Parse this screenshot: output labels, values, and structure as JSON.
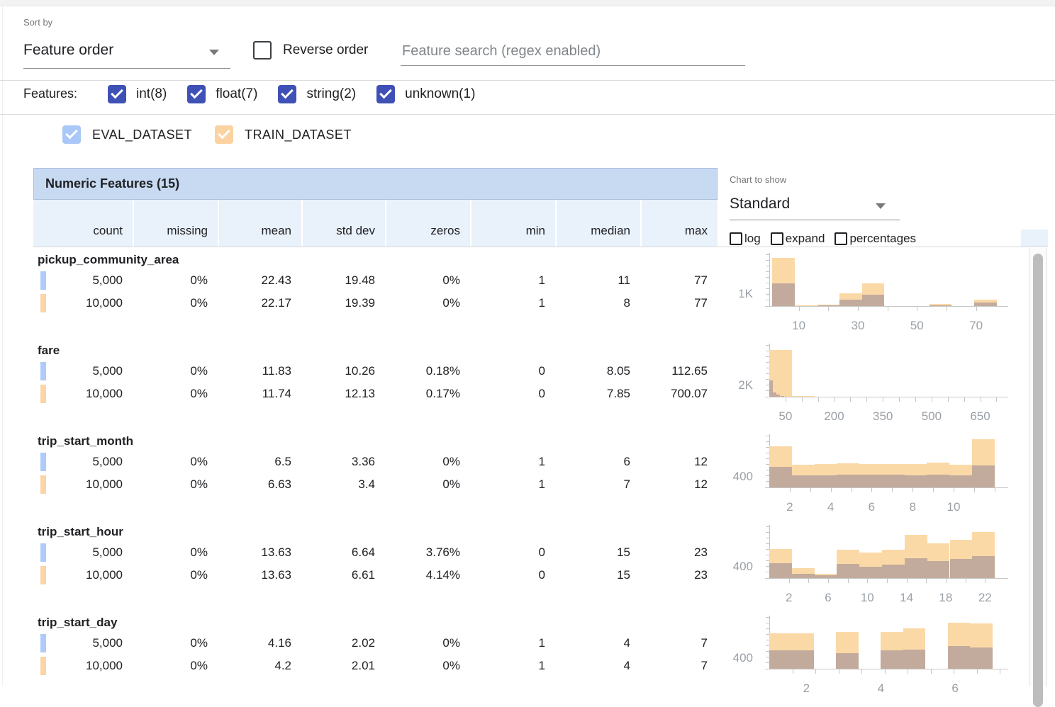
{
  "toolbar": {
    "sort_by_label": "Sort by",
    "sort_by_value": "Feature order",
    "reverse_order_label": "Reverse order",
    "reverse_order_checked": false,
    "search_placeholder": "Feature search (regex enabled)",
    "search_value": ""
  },
  "feature_filters": {
    "label": "Features:",
    "items": [
      {
        "label": "int(8)",
        "checked": true
      },
      {
        "label": "float(7)",
        "checked": true
      },
      {
        "label": "string(2)",
        "checked": true
      },
      {
        "label": "unknown(1)",
        "checked": true
      }
    ]
  },
  "datasets": [
    {
      "name": "EVAL_DATASET",
      "checked": true,
      "color": "#a9c7f8",
      "marker_color": "#aecbfa"
    },
    {
      "name": "TRAIN_DATASET",
      "checked": true,
      "color": "#fbd2a0",
      "marker_color": "#fbd5a5"
    }
  ],
  "table": {
    "title": "Numeric Features (15)",
    "columns": [
      "count",
      "missing",
      "mean",
      "std dev",
      "zeros",
      "min",
      "median",
      "max"
    ],
    "features": [
      {
        "name": "pickup_community_area",
        "rows": [
          {
            "dataset": "EVAL_DATASET",
            "values": [
              "5,000",
              "0%",
              "22.43",
              "19.48",
              "0%",
              "1",
              "11",
              "77"
            ]
          },
          {
            "dataset": "TRAIN_DATASET",
            "values": [
              "10,000",
              "0%",
              "22.17",
              "19.39",
              "0%",
              "1",
              "8",
              "77"
            ]
          }
        ]
      },
      {
        "name": "fare",
        "rows": [
          {
            "dataset": "EVAL_DATASET",
            "values": [
              "5,000",
              "0%",
              "11.83",
              "10.26",
              "0.18%",
              "0",
              "8.05",
              "112.65"
            ]
          },
          {
            "dataset": "TRAIN_DATASET",
            "values": [
              "10,000",
              "0%",
              "11.74",
              "12.13",
              "0.17%",
              "0",
              "7.85",
              "700.07"
            ]
          }
        ]
      },
      {
        "name": "trip_start_month",
        "rows": [
          {
            "dataset": "EVAL_DATASET",
            "values": [
              "5,000",
              "0%",
              "6.5",
              "3.36",
              "0%",
              "1",
              "6",
              "12"
            ]
          },
          {
            "dataset": "TRAIN_DATASET",
            "values": [
              "10,000",
              "0%",
              "6.63",
              "3.4",
              "0%",
              "1",
              "7",
              "12"
            ]
          }
        ]
      },
      {
        "name": "trip_start_hour",
        "rows": [
          {
            "dataset": "EVAL_DATASET",
            "values": [
              "5,000",
              "0%",
              "13.63",
              "6.64",
              "3.76%",
              "0",
              "15",
              "23"
            ]
          },
          {
            "dataset": "TRAIN_DATASET",
            "values": [
              "10,000",
              "0%",
              "13.63",
              "6.61",
              "4.14%",
              "0",
              "15",
              "23"
            ]
          }
        ]
      },
      {
        "name": "trip_start_day",
        "rows": [
          {
            "dataset": "EVAL_DATASET",
            "values": [
              "5,000",
              "0%",
              "4.16",
              "2.02",
              "0%",
              "1",
              "4",
              "7"
            ]
          },
          {
            "dataset": "TRAIN_DATASET",
            "values": [
              "10,000",
              "0%",
              "4.2",
              "2.01",
              "0%",
              "1",
              "4",
              "7"
            ]
          }
        ]
      }
    ]
  },
  "chart_panel": {
    "label": "Chart to show",
    "selected": "Standard",
    "options": [
      {
        "label": "log",
        "checked": false
      },
      {
        "label": "expand",
        "checked": false
      },
      {
        "label": "percentages",
        "checked": false
      }
    ]
  },
  "chart_data": [
    {
      "type": "bar",
      "subtype": "overlaid-histogram",
      "feature": "pickup_community_area",
      "y_axis": {
        "label": "1K",
        "label_value": 1000,
        "ymax": 4500
      },
      "x_axis": {
        "range": [
          0,
          78
        ],
        "tick_labels": [
          10,
          30,
          50,
          70
        ],
        "minor_tick_step": 10
      },
      "series": [
        {
          "name": "TRAIN_DATASET",
          "render_color": "#fbd9a6",
          "range": [
            1,
            77
          ],
          "values": [
            4250,
            60,
            120,
            1120,
            2000,
            25,
            25,
            190,
            15,
            560
          ]
        },
        {
          "name": "EVAL_DATASET",
          "render_color": "#c2ab9c",
          "range": [
            1,
            77
          ],
          "values": [
            2000,
            30,
            50,
            560,
            1000,
            10,
            10,
            60,
            8,
            300
          ]
        }
      ]
    },
    {
      "type": "bar",
      "subtype": "overlaid-histogram",
      "feature": "fare",
      "y_axis": {
        "label": "2K",
        "label_value": 2000,
        "ymax": 9600
      },
      "x_axis": {
        "range": [
          0,
          710
        ],
        "tick_labels": [
          50,
          200,
          350,
          500,
          650
        ],
        "minor_tick_step": 50
      },
      "series": [
        {
          "name": "TRAIN_DATASET",
          "render_color": "#fbd9a6",
          "range": [
            0,
            700.07
          ],
          "values": [
            8800,
            150,
            60,
            25,
            12,
            6,
            4,
            3,
            2,
            1
          ]
        },
        {
          "name": "EVAL_DATASET",
          "render_color": "#c2ab9c",
          "range": [
            0,
            112.65
          ],
          "values": [
            3100,
            800,
            350,
            140,
            50,
            20,
            8,
            4,
            2,
            1
          ]
        }
      ]
    },
    {
      "type": "bar",
      "subtype": "overlaid-histogram",
      "feature": "trip_start_month",
      "y_axis": {
        "label": "400",
        "label_value": 400,
        "ymax": 2050
      },
      "x_axis": {
        "range": [
          1,
          12.25
        ],
        "tick_labels": [
          2,
          4,
          6,
          8,
          10
        ],
        "minor_tick_step": 1
      },
      "series": [
        {
          "name": "TRAIN_DATASET",
          "render_color": "#fbd9a6",
          "range": [
            1,
            12
          ],
          "values": [
            1650,
            900,
            950,
            960,
            930,
            935,
            945,
            990,
            915,
            1940
          ]
        },
        {
          "name": "EVAL_DATASET",
          "render_color": "#c2ab9c",
          "range": [
            1,
            12
          ],
          "values": [
            830,
            480,
            490,
            515,
            520,
            500,
            495,
            505,
            480,
            885
          ]
        }
      ]
    },
    {
      "type": "bar",
      "subtype": "overlaid-histogram",
      "feature": "trip_start_hour",
      "y_axis": {
        "label": "400",
        "label_value": 400,
        "ymax": 1920
      },
      "x_axis": {
        "range": [
          0,
          23.5
        ],
        "tick_labels": [
          2,
          6,
          10,
          14,
          18,
          22
        ],
        "minor_tick_step": 2
      },
      "series": [
        {
          "name": "TRAIN_DATASET",
          "render_color": "#fbd9a6",
          "range": [
            0,
            23
          ],
          "values": [
            1100,
            370,
            160,
            1060,
            960,
            1060,
            1620,
            1300,
            1430,
            1730
          ]
        },
        {
          "name": "EVAL_DATASET",
          "render_color": "#c2ab9c",
          "range": [
            0,
            23
          ],
          "values": [
            560,
            160,
            100,
            530,
            430,
            500,
            750,
            630,
            710,
            840
          ]
        }
      ]
    },
    {
      "type": "bar",
      "subtype": "overlaid-histogram",
      "feature": "trip_start_day",
      "y_axis": {
        "label": "400",
        "label_value": 400,
        "ymax": 2050
      },
      "x_axis": {
        "range": [
          1,
          7.2
        ],
        "tick_labels": [
          2,
          4,
          6
        ],
        "minor_tick_step": 0.62
      },
      "series": [
        {
          "name": "TRAIN_DATASET",
          "render_color": "#fbd9a6",
          "range": [
            1,
            7
          ],
          "values": [
            1430,
            1430,
            0,
            1490,
            0,
            1490,
            1630,
            0,
            1860,
            1830
          ]
        },
        {
          "name": "EVAL_DATASET",
          "render_color": "#c2ab9c",
          "range": [
            1,
            7
          ],
          "values": [
            740,
            730,
            0,
            630,
            0,
            740,
            780,
            0,
            910,
            850
          ]
        }
      ]
    }
  ],
  "colors": {
    "filter_checkbox": "#3f51b5",
    "table_title_bg": "#c7daf2",
    "table_header_bg": "#e9f1fb",
    "train_bar": "#fbd9a6",
    "overlap_bar": "#c2ab9c"
  }
}
